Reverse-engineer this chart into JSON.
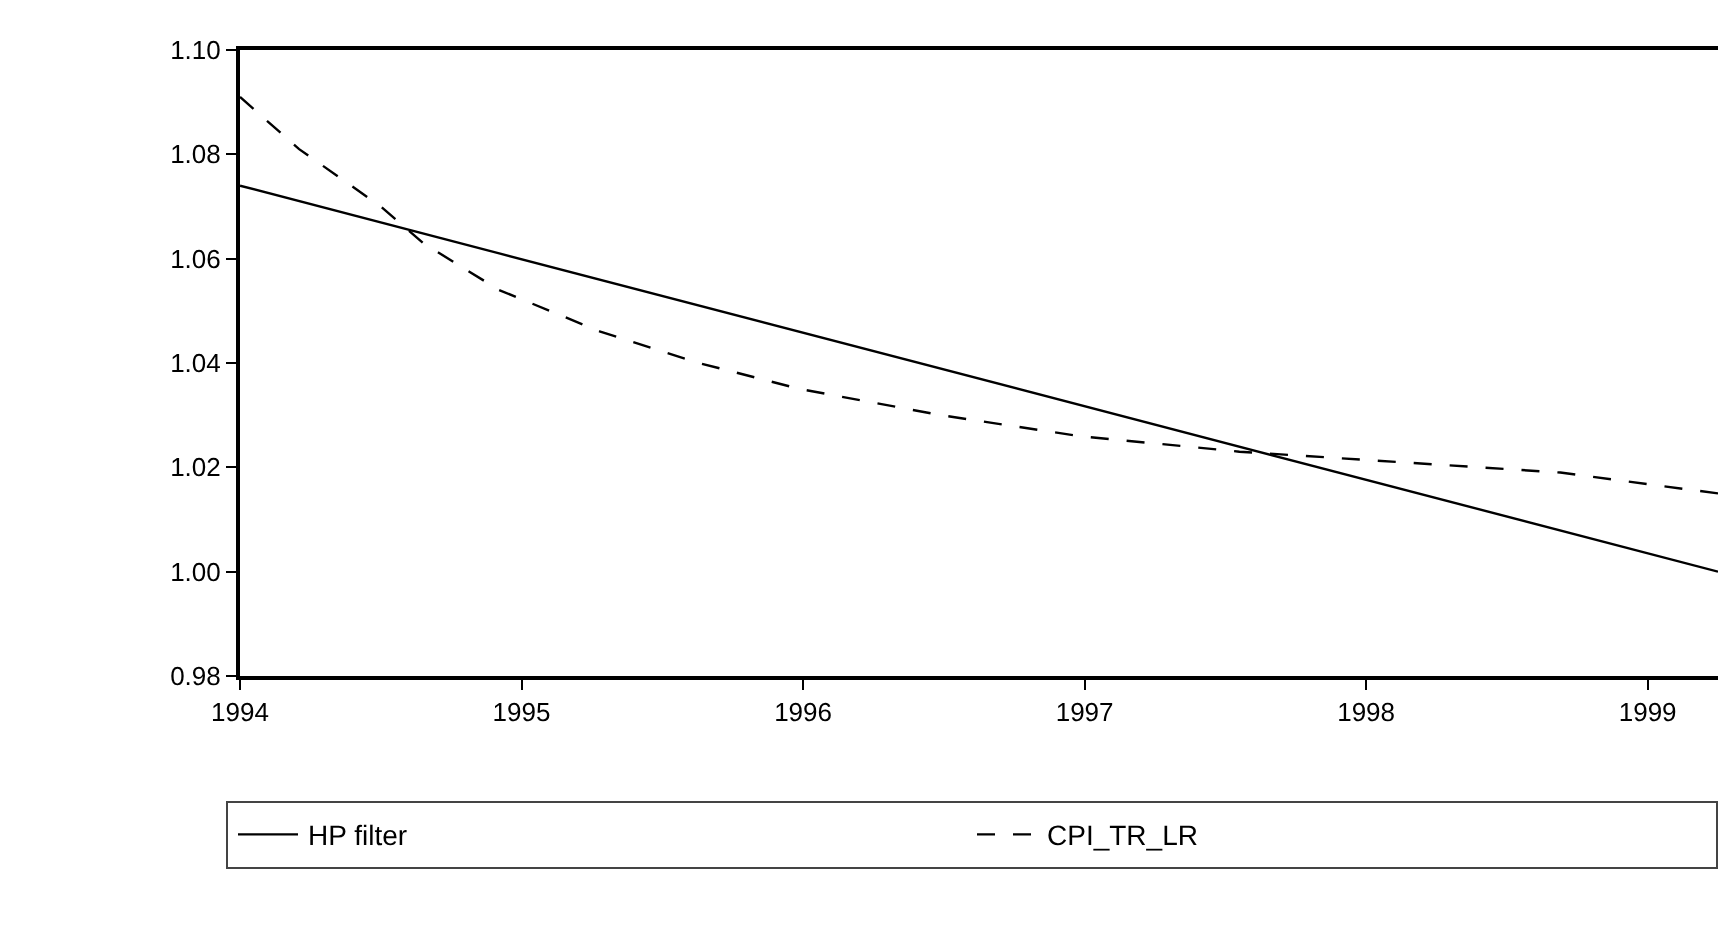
{
  "chart_data": {
    "type": "line",
    "x": [
      1994.0,
      1994.21,
      1994.5,
      1994.65,
      1994.92,
      1995.28,
      1995.63,
      1995.99,
      1996.49,
      1996.98,
      1997.55,
      1998.12,
      1998.69,
      1999.25
    ],
    "series": [
      {
        "name": "HP filter",
        "color": "#000000",
        "line_style": "solid",
        "x": [
          1994.0,
          1999.25
        ],
        "values": [
          1.074,
          1.0
        ]
      },
      {
        "name": "CPI_TR_LR",
        "color": "#000000",
        "line_style": "dashed",
        "values": [
          1.091,
          1.081,
          1.07,
          1.063,
          1.054,
          1.046,
          1.04,
          1.035,
          1.03,
          1.026,
          1.023,
          1.021,
          1.019,
          1.015
        ]
      }
    ],
    "xlim": [
      1994.0,
      1999.25
    ],
    "xticks": [
      1994,
      1995,
      1996,
      1997,
      1998,
      1999
    ],
    "ylim": [
      0.98,
      1.1
    ],
    "yticks": [
      {
        "value": 0.98,
        "label": "0.98"
      },
      {
        "value": 1.0,
        "label": "1.00"
      },
      {
        "value": 1.02,
        "label": "1.02"
      },
      {
        "value": 1.04,
        "label": "1.04"
      },
      {
        "value": 1.06,
        "label": "1.06"
      },
      {
        "value": 1.08,
        "label": "1.08"
      },
      {
        "value": 1.1,
        "label": "1.10"
      }
    ],
    "legend": "bottom",
    "marker": "none"
  }
}
